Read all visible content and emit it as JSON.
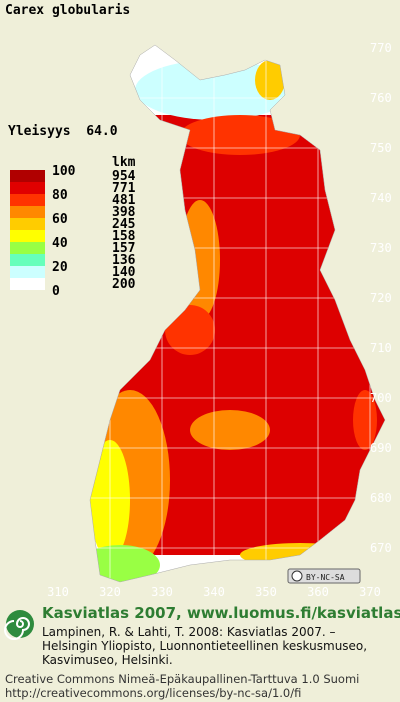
{
  "title": "Carex globularis",
  "frequency": "Yleisyys  64.0",
  "legend": {
    "scale": [
      100,
      80,
      60,
      40,
      20,
      0
    ],
    "colors": [
      "#b00000",
      "#e00000",
      "#ff3300",
      "#ff8800",
      "#ffcc00",
      "#ffff00",
      "#99ff44",
      "#66ffbb",
      "#ccffff",
      "#ffffff"
    ],
    "count_header": "lkm",
    "counts": [
      954,
      771,
      481,
      398,
      245,
      158,
      157,
      136,
      140,
      200
    ]
  },
  "map": {
    "y_labels": [
      770,
      760,
      750,
      740,
      730,
      720,
      710,
      700,
      690,
      680,
      670
    ],
    "x_labels": [
      310,
      320,
      330,
      340,
      350,
      360,
      370
    ],
    "license_badge": "BY-NC-SA"
  },
  "footer": {
    "heading": "Kasviatlas 2007, www.luomus.fi/kasviatlas",
    "citation": [
      "Lampinen, R. & Lahti, T. 2008: Kasviatlas 2007. –",
      "Helsingin Yliopisto, Luonnontieteellinen keskusmuseo,",
      "Kasvimuseo, Helsinki."
    ],
    "license": [
      "Creative Commons Nimeä-Epäkaupallinen-Tarttuva 1.0 Suomi",
      "http://creativecommons.org/licenses/by-nc-sa/1.0/fi"
    ]
  }
}
